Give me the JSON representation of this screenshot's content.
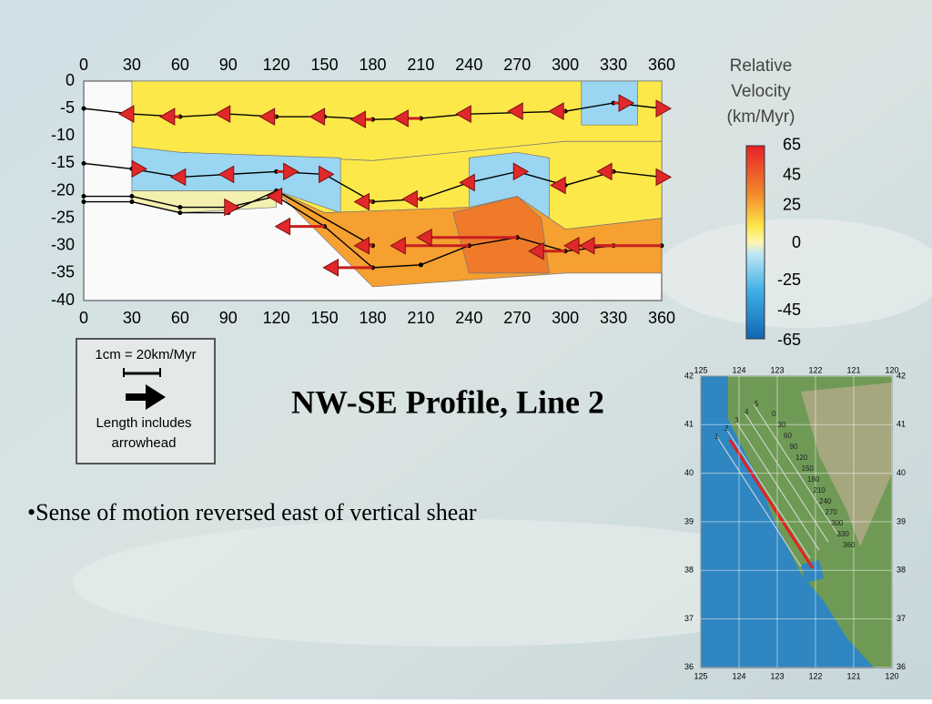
{
  "figure": {
    "x_ticks_top": [
      0,
      30,
      60,
      90,
      120,
      150,
      180,
      210,
      240,
      270,
      300,
      330,
      360
    ],
    "x_ticks_bottom": [
      0,
      30,
      60,
      90,
      120,
      150,
      180,
      210,
      240,
      270,
      300,
      330,
      360
    ],
    "y_ticks": [
      0,
      -5,
      -10,
      -15,
      -20,
      -25,
      -30,
      -35,
      -40
    ]
  },
  "colorbar": {
    "title": [
      "Relative",
      "Velocity",
      "(km/Myr)"
    ],
    "labels": [
      65,
      45,
      25,
      0,
      -25,
      -45,
      -65
    ]
  },
  "scale_legend": {
    "scale": "1cm = 20km/Myr",
    "note": [
      "Length includes",
      "arrowhead"
    ]
  },
  "title": "NW-SE Profile, Line 2",
  "bullets": [
    "•Sense of motion reversed east of vertical shear"
  ],
  "map": {
    "lon_top": [
      125,
      124,
      123,
      122,
      121,
      120
    ],
    "lon_bottom": [
      125,
      124,
      123,
      122,
      121,
      120
    ],
    "lat_left": [
      42,
      41,
      40,
      39,
      38,
      37,
      36
    ],
    "lat_right": [
      42,
      41,
      40,
      39,
      38,
      37,
      36
    ],
    "line_labels": [
      "1",
      "2",
      "3",
      "4",
      "5",
      "0",
      "30",
      "60",
      "90",
      "120",
      "150",
      "180",
      "210",
      "240",
      "270",
      "300",
      "330",
      "360"
    ]
  }
}
